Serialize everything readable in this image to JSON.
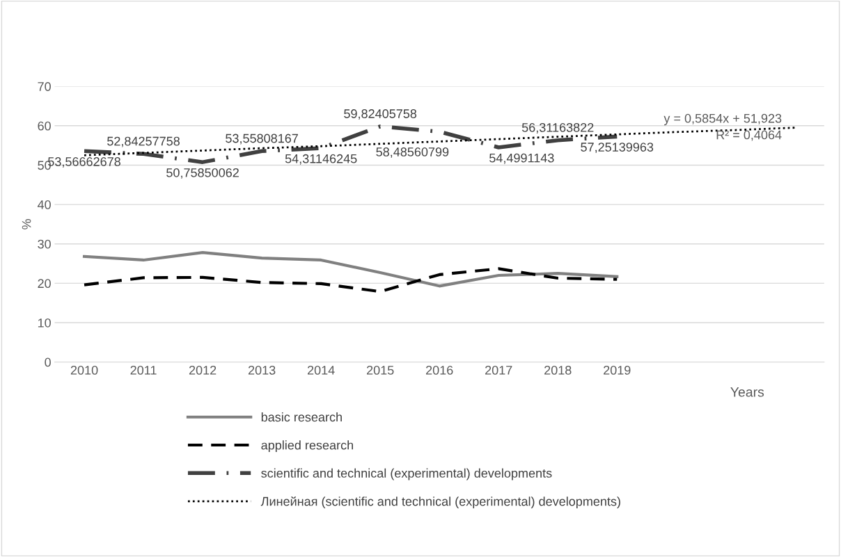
{
  "chart_data": {
    "type": "line",
    "categories": [
      "2010",
      "2011",
      "2012",
      "2013",
      "2014",
      "2015",
      "2016",
      "2017",
      "2018",
      "2019",
      null,
      null,
      null
    ],
    "series": [
      {
        "name": "basic research",
        "color": "#808080",
        "line_style": "solid",
        "values": [
          26.8,
          25.9,
          27.8,
          26.4,
          25.9,
          22.7,
          19.3,
          22.0,
          22.5,
          21.7,
          null,
          null,
          null
        ]
      },
      {
        "name": "applied research",
        "color": "#000000",
        "line_style": "dashed",
        "values": [
          19.6,
          21.4,
          21.5,
          20.2,
          19.9,
          17.9,
          22.2,
          23.7,
          21.3,
          21.0,
          null,
          null,
          null
        ]
      },
      {
        "name": "scientific and technical (experimental) developments",
        "color": "#404040",
        "line_style": "dashdot",
        "values": [
          53.56662678,
          52.84257758,
          50.75850062,
          53.55808167,
          54.31146245,
          59.82405758,
          58.48560799,
          54.4991143,
          56.31163822,
          57.25139963,
          null,
          null,
          null
        ],
        "value_labels": [
          "53,56662678",
          "52,84257758",
          "50,75850062",
          "53,55808167",
          "54,31146245",
          "59,82405758",
          "58,48560799",
          "54,4991143",
          "56,31163822",
          "57,25139963",
          null,
          null,
          null
        ]
      },
      {
        "name": "Линейная (scientific and technical (experimental) developments)",
        "color": "#000000",
        "line_style": "dotted",
        "values": [
          52.5,
          53.1,
          53.7,
          54.3,
          54.8,
          55.4,
          56.0,
          56.6,
          57.2,
          57.8,
          58.4,
          58.9,
          59.5
        ]
      }
    ],
    "xlabel": "Years",
    "ylabel": "%",
    "ylim": [
      0,
      70
    ],
    "yticks": [
      0,
      10,
      20,
      30,
      40,
      50,
      60,
      70
    ],
    "grid": "y",
    "legend": "bottom",
    "marker": "none",
    "annotations": [
      "y = 0,5854x + 51,923",
      "R² = 0,4064"
    ]
  }
}
